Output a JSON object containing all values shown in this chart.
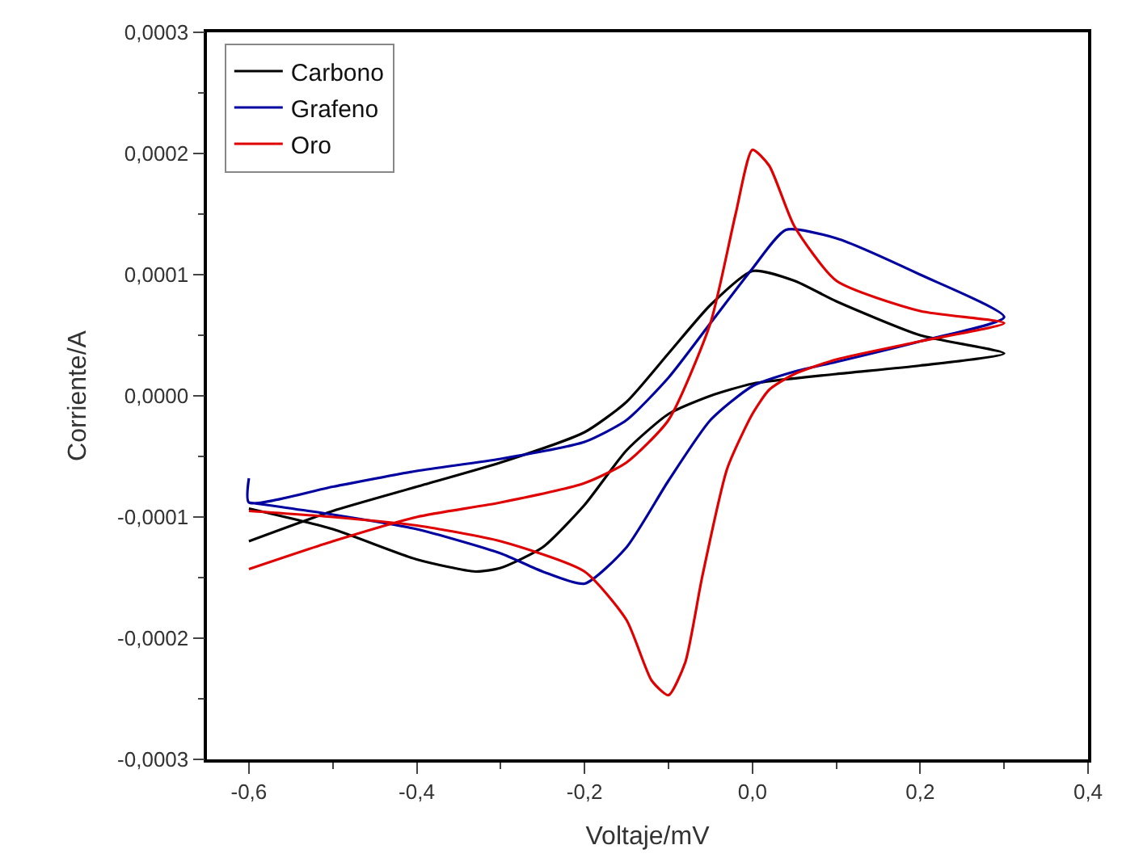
{
  "chart_data": {
    "type": "line",
    "xlabel": "Voltaje/mV",
    "ylabel": "Corriente/A",
    "xlim": [
      -0.65,
      0.4
    ],
    "ylim": [
      -0.0003,
      0.0003
    ],
    "xticks": [
      {
        "value": -0.6,
        "label": "-0,6"
      },
      {
        "value": -0.4,
        "label": "-0,4"
      },
      {
        "value": -0.2,
        "label": "-0,2"
      },
      {
        "value": 0,
        "label": "0,0"
      },
      {
        "value": 0.2,
        "label": "0,2"
      },
      {
        "value": 0.4,
        "label": "0,4"
      }
    ],
    "yticks": [
      {
        "value": -0.0003,
        "label": "-0,0003"
      },
      {
        "value": -0.0002,
        "label": "-0,0002"
      },
      {
        "value": -0.0001,
        "label": "-0,0001"
      },
      {
        "value": 0,
        "label": "0,0000"
      },
      {
        "value": 0.0001,
        "label": "0,0001"
      },
      {
        "value": 0.0002,
        "label": "0,0002"
      },
      {
        "value": 0.0003,
        "label": "0,0003"
      }
    ],
    "legend": "top left",
    "marker": "none",
    "line_style": "solid",
    "series": [
      {
        "name": "Carbono",
        "color": "#000000",
        "x": [
          -0.6,
          -0.5,
          -0.4,
          -0.3,
          -0.2,
          -0.15,
          -0.1,
          -0.05,
          0,
          0.05,
          0.1,
          0.2,
          0.3,
          0.2,
          0.1,
          0,
          -0.05,
          -0.1,
          -0.15,
          -0.2,
          -0.25,
          -0.3,
          -0.33,
          -0.4,
          -0.5,
          -0.6
        ],
        "values": [
          -0.00012,
          -9.5e-05,
          -7.5e-05,
          -5.5e-05,
          -3e-05,
          -5e-06,
          3.5e-05,
          7.5e-05,
          0.000103,
          9.5e-05,
          7.8e-05,
          5e-05,
          3.5e-05,
          2.5e-05,
          1.8e-05,
          1e-05,
          0.0,
          -1.5e-05,
          -4.5e-05,
          -9e-05,
          -0.000125,
          -0.000142,
          -0.000145,
          -0.000135,
          -0.00011,
          -9.3e-05
        ]
      },
      {
        "name": "Grafeno",
        "color": "#0000a0",
        "x": [
          -0.6,
          -0.6,
          -0.5,
          -0.4,
          -0.3,
          -0.2,
          -0.15,
          -0.1,
          -0.05,
          0,
          0.04,
          0.1,
          0.2,
          0.3,
          0.2,
          0.1,
          0.05,
          0,
          -0.05,
          -0.1,
          -0.15,
          -0.2,
          -0.25,
          -0.3,
          -0.4,
          -0.5,
          -0.6
        ],
        "values": [
          -6.8e-05,
          -8.8e-05,
          -7.5e-05,
          -6.2e-05,
          -5.2e-05,
          -3.8e-05,
          -2e-05,
          1.5e-05,
          6e-05,
          0.000105,
          0.000137,
          0.00013,
          0.0001,
          6.5e-05,
          4.5e-05,
          2.8e-05,
          2e-05,
          8e-06,
          -2e-05,
          -7e-05,
          -0.000125,
          -0.000155,
          -0.000145,
          -0.00013,
          -0.00011,
          -9.8e-05,
          -8.8e-05
        ]
      },
      {
        "name": "Oro",
        "color": "#e00000",
        "x": [
          -0.6,
          -0.5,
          -0.4,
          -0.3,
          -0.2,
          -0.15,
          -0.1,
          -0.05,
          -0.02,
          0,
          0.02,
          0.05,
          0.1,
          0.2,
          0.3,
          0.2,
          0.1,
          0.05,
          0.02,
          0,
          -0.03,
          -0.06,
          -0.08,
          -0.1,
          -0.12,
          -0.15,
          -0.2,
          -0.3,
          -0.4,
          -0.5,
          -0.6
        ],
        "values": [
          -0.000143,
          -0.00012,
          -0.0001,
          -8.8e-05,
          -7.2e-05,
          -5.5e-05,
          -2e-05,
          6e-05,
          0.00015,
          0.000203,
          0.00019,
          0.00014,
          9.5e-05,
          7e-05,
          6e-05,
          4.5e-05,
          3e-05,
          1.8e-05,
          5e-06,
          -1.5e-05,
          -6e-05,
          -0.00015,
          -0.00022,
          -0.000247,
          -0.000235,
          -0.000185,
          -0.000145,
          -0.00012,
          -0.000107,
          -0.0001,
          -9.5e-05
        ]
      }
    ]
  }
}
